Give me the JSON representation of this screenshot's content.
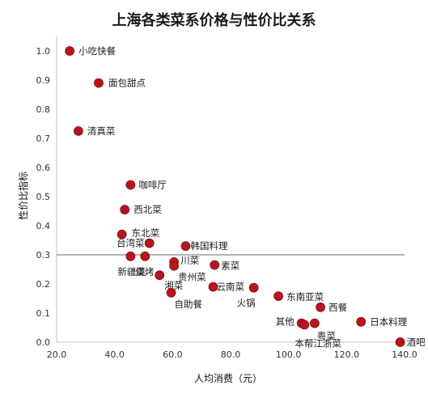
{
  "chart_data": {
    "type": "scatter",
    "title": "上海各类菜系价格与性价比关系",
    "xlabel": "人均消费（元）",
    "ylabel": "性价比指标",
    "xlim": [
      20,
      140
    ],
    "ylim": [
      0,
      1.05
    ],
    "x_ticks": [
      "20.0",
      "40.0",
      "60.0",
      "80.0",
      "100.0",
      "120.0",
      "140.0"
    ],
    "y_ticks": [
      "0.0",
      "0.1",
      "0.2",
      "0.3",
      "0.4",
      "0.5",
      "0.6",
      "0.7",
      "0.8",
      "0.9",
      "1.0"
    ],
    "reference_line_y": 0.3,
    "grid": false,
    "colors": {
      "marker": "#b5161d",
      "reference_line": "#b3b3b3"
    },
    "points": [
      {
        "label": "小吃快餐",
        "x": 24.5,
        "y": 1.0
      },
      {
        "label": "面包甜点",
        "x": 34.5,
        "y": 0.89
      },
      {
        "label": "清真菜",
        "x": 27.5,
        "y": 0.725
      },
      {
        "label": "咖啡厅",
        "x": 45.5,
        "y": 0.54
      },
      {
        "label": "西北菜",
        "x": 43.5,
        "y": 0.455
      },
      {
        "label": "东北菜",
        "x": 42.5,
        "y": 0.37
      },
      {
        "label": "台湾菜",
        "x": 52.0,
        "y": 0.34
      },
      {
        "label": "韩国料理",
        "x": 64.5,
        "y": 0.33
      },
      {
        "label": "新疆菜",
        "x": 45.5,
        "y": 0.295
      },
      {
        "label": "烧烤",
        "x": 50.5,
        "y": 0.295
      },
      {
        "label": "川菜",
        "x": 60.5,
        "y": 0.275
      },
      {
        "label": "贵州菜",
        "x": 60.5,
        "y": 0.262
      },
      {
        "label": "素菜",
        "x": 74.5,
        "y": 0.265
      },
      {
        "label": "湘菜",
        "x": 55.5,
        "y": 0.23
      },
      {
        "label": "云南菜",
        "x": 74.0,
        "y": 0.19
      },
      {
        "label": "火锅",
        "x": 88.0,
        "y": 0.187
      },
      {
        "label": "自助餐",
        "x": 59.5,
        "y": 0.17
      },
      {
        "label": "东南亚菜",
        "x": 96.5,
        "y": 0.158
      },
      {
        "label": "西餐",
        "x": 111.0,
        "y": 0.12
      },
      {
        "label": "日本料理",
        "x": 125.0,
        "y": 0.07
      },
      {
        "label": "其他",
        "x": 104.5,
        "y": 0.065
      },
      {
        "label": "本帮江浙菜",
        "x": 105.5,
        "y": 0.06
      },
      {
        "label": "粤菜",
        "x": 109.0,
        "y": 0.065
      },
      {
        "label": "酒吧",
        "x": 138.5,
        "y": 0.0
      }
    ]
  }
}
